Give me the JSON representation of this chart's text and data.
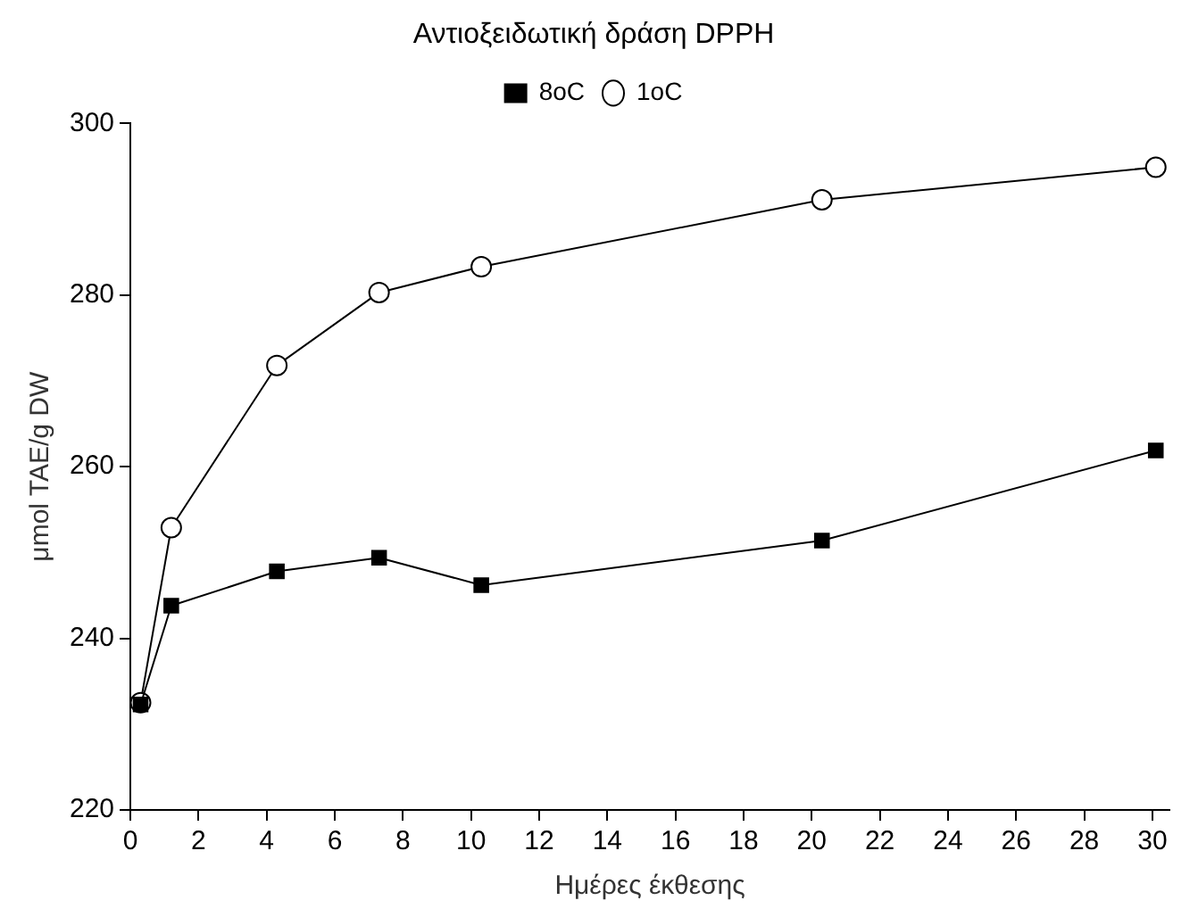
{
  "chart_data": {
    "type": "line",
    "title": "Αντιοξειδωτική δράση DPPH",
    "xlabel": "Ημέρες έκθεσης",
    "ylabel": "μmol TAE/g DW",
    "x": [
      0.3,
      1.2,
      4.3,
      7.3,
      10.3,
      20.3,
      30.1
    ],
    "series": [
      {
        "name": "1oC",
        "color": "#000000",
        "marker": "circle",
        "values": [
          232.5,
          252.9,
          271.8,
          280.3,
          283.3,
          291.1,
          294.9
        ]
      },
      {
        "name": "8oC",
        "color": "#000000",
        "marker": "square",
        "values": [
          232.3,
          243.8,
          247.8,
          249.4,
          246.2,
          251.4,
          261.9
        ]
      }
    ],
    "xlim": [
      0,
      30.5
    ],
    "xticks": [
      0,
      2,
      4,
      6,
      8,
      10,
      12,
      14,
      16,
      18,
      20,
      22,
      24,
      26,
      28,
      30
    ],
    "ylim": [
      220,
      300
    ],
    "yticks": [
      220,
      240,
      260,
      280,
      300
    ],
    "grid": false,
    "legend": "top",
    "line_style": "solid"
  }
}
